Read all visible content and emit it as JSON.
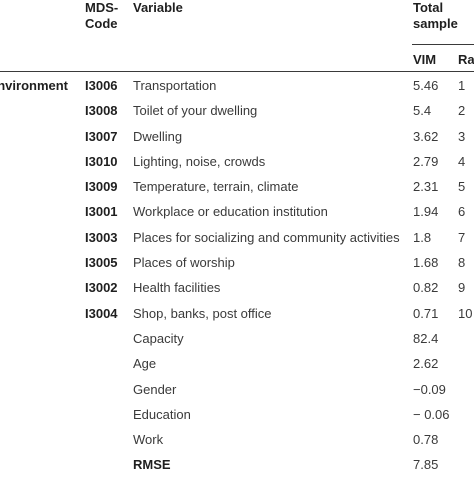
{
  "header": {
    "code_label": "MDS-\nCode",
    "variable_label": "Variable",
    "total_label": "Total\nsample",
    "vim_label": "VIM",
    "rank_label": "Ra"
  },
  "rows": [
    {
      "group": "environment",
      "code": "I3006",
      "variable": "Transportation",
      "vim": "5.46",
      "rank": "1"
    },
    {
      "group": "",
      "code": "I3008",
      "variable": "Toilet of your dwelling",
      "vim": "5.4",
      "rank": "2"
    },
    {
      "group": "",
      "code": "I3007",
      "variable": "Dwelling",
      "vim": "3.62",
      "rank": "3"
    },
    {
      "group": "",
      "code": "I3010",
      "variable": "Lighting, noise, crowds",
      "vim": "2.79",
      "rank": "4"
    },
    {
      "group": "",
      "code": "I3009",
      "variable": "Temperature, terrain, climate",
      "vim": "2.31",
      "rank": "5"
    },
    {
      "group": "",
      "code": "I3001",
      "variable": "Workplace or education institution",
      "vim": "1.94",
      "rank": "6"
    },
    {
      "group": "",
      "code": "I3003",
      "variable": "Places for socializing and community activities",
      "vim": "1.8",
      "rank": "7"
    },
    {
      "group": "",
      "code": "I3005",
      "variable": "Places of worship",
      "vim": "1.68",
      "rank": "8"
    },
    {
      "group": "",
      "code": "I3002",
      "variable": "Health facilities",
      "vim": "0.82",
      "rank": "9"
    },
    {
      "group": "",
      "code": "I3004",
      "variable": "Shop, banks, post office",
      "vim": "0.71",
      "rank": "10"
    },
    {
      "group": "",
      "code": "",
      "variable": "Capacity",
      "vim": "82.4",
      "rank": ""
    },
    {
      "group": "",
      "code": "",
      "variable": "Age",
      "vim": "2.62",
      "rank": ""
    },
    {
      "group": "",
      "code": "",
      "variable": "Gender",
      "vim": "−0.09",
      "rank": ""
    },
    {
      "group": "",
      "code": "",
      "variable": "Education",
      "vim": "− 0.06",
      "rank": ""
    },
    {
      "group": "",
      "code": "",
      "variable": "Work",
      "vim": "0.78",
      "rank": ""
    },
    {
      "group": "",
      "code": "",
      "variable": "RMSE",
      "vim": "7.85",
      "rank": "",
      "bold": true
    }
  ]
}
